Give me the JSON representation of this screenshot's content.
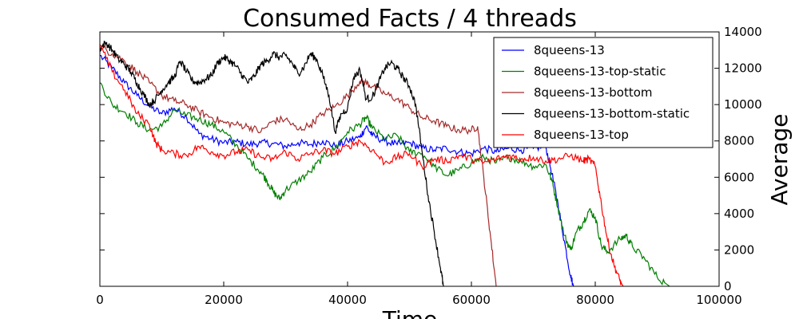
{
  "chart_data": {
    "type": "line",
    "title": "Consumed Facts / 4 threads",
    "xlabel": "Time",
    "ylabel": "Average",
    "xlim": [
      0,
      100000
    ],
    "ylim": [
      0,
      14000
    ],
    "x_ticks": [
      "0",
      "20000",
      "40000",
      "60000",
      "80000",
      "100000"
    ],
    "y_ticks": [
      "0",
      "2000",
      "4000",
      "6000",
      "8000",
      "10000",
      "12000",
      "14000"
    ],
    "y_axis_side": "right",
    "grid": false,
    "legend_position": "top-right",
    "series": [
      {
        "name": "8queens-13",
        "color": "#0000ff",
        "points": [
          [
            0,
            12700
          ],
          [
            2000,
            12000
          ],
          [
            4000,
            11200
          ],
          [
            6000,
            10500
          ],
          [
            8000,
            9900
          ],
          [
            10000,
            9500
          ],
          [
            12000,
            9800
          ],
          [
            14000,
            9300
          ],
          [
            16000,
            8400
          ],
          [
            18000,
            8100
          ],
          [
            20000,
            7900
          ],
          [
            22000,
            7950
          ],
          [
            24000,
            7800
          ],
          [
            26000,
            7900
          ],
          [
            28000,
            7850
          ],
          [
            30000,
            7700
          ],
          [
            32000,
            7900
          ],
          [
            34000,
            7800
          ],
          [
            36000,
            8000
          ],
          [
            38000,
            7700
          ],
          [
            40000,
            8000
          ],
          [
            42000,
            8200
          ],
          [
            43000,
            8800
          ],
          [
            44000,
            8300
          ],
          [
            46000,
            8000
          ],
          [
            48000,
            7800
          ],
          [
            50000,
            7900
          ],
          [
            52000,
            7600
          ],
          [
            54000,
            7500
          ],
          [
            56000,
            7600
          ],
          [
            58000,
            7400
          ],
          [
            60000,
            7300
          ],
          [
            62000,
            7600
          ],
          [
            64000,
            7400
          ],
          [
            66000,
            7600
          ],
          [
            68000,
            7500
          ],
          [
            70000,
            7600
          ],
          [
            72000,
            7700
          ],
          [
            73000,
            6200
          ],
          [
            74000,
            4500
          ],
          [
            75000,
            2500
          ],
          [
            76000,
            600
          ],
          [
            76500,
            0
          ]
        ]
      },
      {
        "name": "8queens-13-top-static",
        "color": "#008000",
        "points": [
          [
            0,
            11200
          ],
          [
            2000,
            10000
          ],
          [
            4000,
            9600
          ],
          [
            6000,
            9000
          ],
          [
            8000,
            8600
          ],
          [
            10000,
            8800
          ],
          [
            12000,
            9700
          ],
          [
            14000,
            9400
          ],
          [
            16000,
            9200
          ],
          [
            18000,
            8900
          ],
          [
            20000,
            8500
          ],
          [
            22000,
            7800
          ],
          [
            24000,
            7000
          ],
          [
            26000,
            6300
          ],
          [
            27000,
            5800
          ],
          [
            28000,
            5200
          ],
          [
            29000,
            4800
          ],
          [
            30000,
            5300
          ],
          [
            32000,
            5800
          ],
          [
            34000,
            6300
          ],
          [
            36000,
            7100
          ],
          [
            38000,
            7600
          ],
          [
            40000,
            8500
          ],
          [
            42000,
            8900
          ],
          [
            43000,
            9300
          ],
          [
            44000,
            8700
          ],
          [
            46000,
            8100
          ],
          [
            48000,
            8300
          ],
          [
            50000,
            7400
          ],
          [
            52000,
            7300
          ],
          [
            54000,
            6600
          ],
          [
            56000,
            6100
          ],
          [
            58000,
            6400
          ],
          [
            60000,
            6800
          ],
          [
            62000,
            7100
          ],
          [
            64000,
            6800
          ],
          [
            66000,
            7100
          ],
          [
            68000,
            6900
          ],
          [
            70000,
            6600
          ],
          [
            72000,
            6700
          ],
          [
            73000,
            5800
          ],
          [
            74000,
            4300
          ],
          [
            75000,
            2800
          ],
          [
            76000,
            2000
          ],
          [
            77000,
            3000
          ],
          [
            78000,
            3500
          ],
          [
            79000,
            4200
          ],
          [
            80000,
            3800
          ],
          [
            81000,
            2200
          ],
          [
            82000,
            1900
          ],
          [
            84000,
            2600
          ],
          [
            85000,
            2800
          ],
          [
            86000,
            2200
          ],
          [
            88000,
            1500
          ],
          [
            90000,
            500
          ],
          [
            92000,
            0
          ]
        ]
      },
      {
        "name": "8queens-13-bottom",
        "color": "#a52a2a",
        "points": [
          [
            0,
            13200
          ],
          [
            2000,
            12800
          ],
          [
            4000,
            12400
          ],
          [
            6000,
            11800
          ],
          [
            8000,
            11200
          ],
          [
            10000,
            10500
          ],
          [
            12000,
            10200
          ],
          [
            14000,
            10000
          ],
          [
            16000,
            9600
          ],
          [
            18000,
            9300
          ],
          [
            20000,
            9000
          ],
          [
            22000,
            8900
          ],
          [
            24000,
            8800
          ],
          [
            26000,
            8500
          ],
          [
            28000,
            9100
          ],
          [
            30000,
            9200
          ],
          [
            32000,
            8600
          ],
          [
            34000,
            8900
          ],
          [
            36000,
            9500
          ],
          [
            38000,
            9900
          ],
          [
            40000,
            10500
          ],
          [
            42000,
            11300
          ],
          [
            43000,
            11200
          ],
          [
            44000,
            11000
          ],
          [
            46000,
            10600
          ],
          [
            48000,
            10300
          ],
          [
            50000,
            9800
          ],
          [
            52000,
            9300
          ],
          [
            54000,
            9100
          ],
          [
            56000,
            8800
          ],
          [
            58000,
            8600
          ],
          [
            60000,
            8600
          ],
          [
            61000,
            8800
          ],
          [
            62000,
            6000
          ],
          [
            63000,
            3000
          ],
          [
            64000,
            0
          ]
        ]
      },
      {
        "name": "8queens-13-bottom-static",
        "color": "#000000",
        "points": [
          [
            0,
            13100
          ],
          [
            1000,
            13400
          ],
          [
            2000,
            13000
          ],
          [
            3000,
            12500
          ],
          [
            4000,
            12200
          ],
          [
            5000,
            11800
          ],
          [
            6000,
            11200
          ],
          [
            7000,
            10600
          ],
          [
            8000,
            10000
          ],
          [
            9000,
            10300
          ],
          [
            10000,
            10800
          ],
          [
            11000,
            11200
          ],
          [
            12000,
            11500
          ],
          [
            13000,
            12400
          ],
          [
            14000,
            11800
          ],
          [
            15000,
            11300
          ],
          [
            16000,
            11200
          ],
          [
            17000,
            11400
          ],
          [
            18000,
            11600
          ],
          [
            19000,
            12300
          ],
          [
            20000,
            12600
          ],
          [
            21000,
            12400
          ],
          [
            22000,
            12100
          ],
          [
            23000,
            11600
          ],
          [
            24000,
            11200
          ],
          [
            25000,
            11600
          ],
          [
            26000,
            12200
          ],
          [
            27000,
            12400
          ],
          [
            28000,
            12800
          ],
          [
            29000,
            12600
          ],
          [
            30000,
            12700
          ],
          [
            31000,
            12300
          ],
          [
            32000,
            11700
          ],
          [
            33000,
            12100
          ],
          [
            34000,
            12800
          ],
          [
            35000,
            12500
          ],
          [
            36000,
            11600
          ],
          [
            37000,
            10500
          ],
          [
            38000,
            8500
          ],
          [
            39000,
            9500
          ],
          [
            40000,
            9800
          ],
          [
            41000,
            11500
          ],
          [
            42000,
            11900
          ],
          [
            43000,
            10300
          ],
          [
            44000,
            10400
          ],
          [
            45000,
            11200
          ],
          [
            46000,
            12000
          ],
          [
            47000,
            12300
          ],
          [
            48000,
            12000
          ],
          [
            49000,
            11500
          ],
          [
            50000,
            11000
          ],
          [
            51000,
            10000
          ],
          [
            52000,
            7500
          ],
          [
            53000,
            5000
          ],
          [
            54000,
            3000
          ],
          [
            55000,
            1000
          ],
          [
            55500,
            0
          ]
        ]
      },
      {
        "name": "8queens-13-top",
        "color": "#ff0000",
        "points": [
          [
            0,
            13300
          ],
          [
            2000,
            11800
          ],
          [
            4000,
            10800
          ],
          [
            6000,
            9500
          ],
          [
            8000,
            8900
          ],
          [
            9000,
            7900
          ],
          [
            10000,
            7500
          ],
          [
            12000,
            7300
          ],
          [
            14000,
            7200
          ],
          [
            16000,
            7700
          ],
          [
            18000,
            7400
          ],
          [
            20000,
            7200
          ],
          [
            22000,
            7400
          ],
          [
            24000,
            7500
          ],
          [
            26000,
            7100
          ],
          [
            28000,
            7000
          ],
          [
            30000,
            7400
          ],
          [
            32000,
            7000
          ],
          [
            34000,
            7300
          ],
          [
            36000,
            7500
          ],
          [
            38000,
            7300
          ],
          [
            40000,
            7700
          ],
          [
            42000,
            8000
          ],
          [
            44000,
            7500
          ],
          [
            46000,
            6800
          ],
          [
            48000,
            7100
          ],
          [
            50000,
            7300
          ],
          [
            52000,
            6600
          ],
          [
            54000,
            7000
          ],
          [
            56000,
            6900
          ],
          [
            58000,
            7200
          ],
          [
            60000,
            7000
          ],
          [
            62000,
            6800
          ],
          [
            64000,
            7000
          ],
          [
            66000,
            7200
          ],
          [
            68000,
            7000
          ],
          [
            70000,
            7100
          ],
          [
            72000,
            6900
          ],
          [
            74000,
            7000
          ],
          [
            76000,
            7200
          ],
          [
            78000,
            6900
          ],
          [
            79000,
            7000
          ],
          [
            80000,
            6600
          ],
          [
            81000,
            4500
          ],
          [
            82000,
            2500
          ],
          [
            83000,
            1200
          ],
          [
            84000,
            300
          ],
          [
            84500,
            0
          ]
        ]
      }
    ]
  }
}
